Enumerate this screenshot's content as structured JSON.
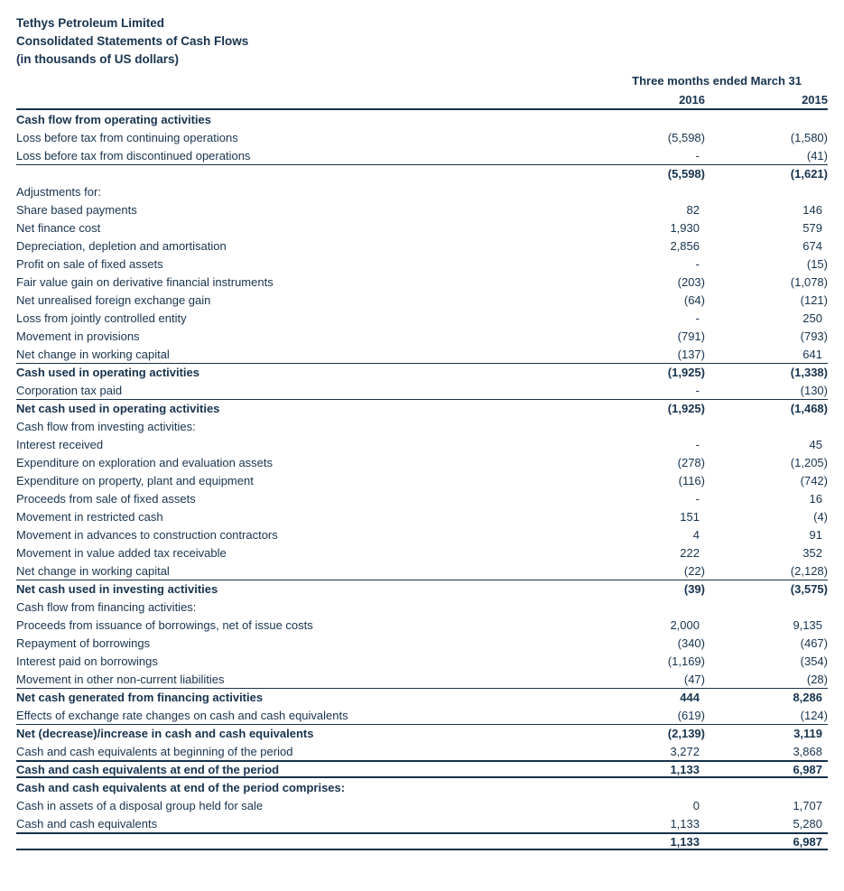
{
  "document": {
    "title": "Tethys Petroleum Limited",
    "subtitle": "Consolidated Statements of Cash Flows",
    "unit_note": "(in thousands of US dollars)"
  },
  "colors": {
    "ink": "#17334e",
    "rule": "#16324c",
    "background": "#ffffff"
  },
  "table": {
    "period_header": "Three months ended March 31",
    "columns": [
      "2016",
      "2015"
    ],
    "rows": [
      {
        "label": "Cash flow from operating activities",
        "type": "section"
      },
      {
        "label": "Loss before tax from continuing operations",
        "v2016": "(5,598)",
        "v2015": "(1,580)",
        "type": "item"
      },
      {
        "label": "Loss before tax from discontinued operations",
        "v2016": "-",
        "v2015": "(41)",
        "type": "item"
      },
      {
        "label": "",
        "v2016": "(5,598)",
        "v2015": "(1,621)",
        "type": "total"
      },
      {
        "label": "Adjustments for:",
        "type": "plain"
      },
      {
        "label": "Share based payments",
        "v2016": "82",
        "v2015": "146",
        "type": "item"
      },
      {
        "label": "Net finance cost",
        "v2016": "1,930",
        "v2015": "579",
        "type": "item"
      },
      {
        "label": "Depreciation, depletion and amortisation",
        "v2016": "2,856",
        "v2015": "674",
        "type": "item"
      },
      {
        "label": "Profit on sale of fixed assets",
        "v2016": "-",
        "v2015": "(15)",
        "type": "item"
      },
      {
        "label": "Fair value gain on derivative financial instruments",
        "v2016": "(203)",
        "v2015": "(1,078)",
        "type": "item"
      },
      {
        "label": "Net unrealised foreign exchange gain",
        "v2016": "(64)",
        "v2015": "(121)",
        "type": "item"
      },
      {
        "label": "Loss from jointly controlled entity",
        "v2016": "-",
        "v2015": "250",
        "type": "item"
      },
      {
        "label": "Movement in provisions",
        "v2016": "(791)",
        "v2015": "(793)",
        "type": "item"
      },
      {
        "label": "Net change in working capital",
        "v2016": "(137)",
        "v2015": "641",
        "type": "item"
      },
      {
        "label": "Cash used in operating activities",
        "v2016": "(1,925)",
        "v2015": "(1,338)",
        "type": "total"
      },
      {
        "label": "Corporation tax paid",
        "v2016": "-",
        "v2015": "(130)",
        "type": "item"
      },
      {
        "label": "Net cash used in operating activities",
        "v2016": "(1,925)",
        "v2015": "(1,468)",
        "type": "total"
      },
      {
        "label": "Cash flow from investing activities:",
        "type": "plain"
      },
      {
        "label": "Interest received",
        "v2016": "-",
        "v2015": "45",
        "type": "item"
      },
      {
        "label": "Expenditure on exploration and evaluation assets",
        "v2016": "(278)",
        "v2015": "(1,205)",
        "type": "item"
      },
      {
        "label": "Expenditure on property, plant and equipment",
        "v2016": "(116)",
        "v2015": "(742)",
        "type": "item"
      },
      {
        "label": "Proceeds from sale of fixed assets",
        "v2016": "-",
        "v2015": "16",
        "type": "item"
      },
      {
        "label": "Movement in restricted cash",
        "v2016": "151",
        "v2015": "(4)",
        "type": "item"
      },
      {
        "label": "Movement in advances to construction contractors",
        "v2016": "4",
        "v2015": "91",
        "type": "item"
      },
      {
        "label": "Movement in value added tax receivable",
        "v2016": "222",
        "v2015": "352",
        "type": "item"
      },
      {
        "label": "Net change in working capital",
        "v2016": "(22)",
        "v2015": "(2,128)",
        "type": "item"
      },
      {
        "label": "Net cash used in investing activities",
        "v2016": "(39)",
        "v2015": "(3,575)",
        "type": "total"
      },
      {
        "label": "Cash flow from financing activities:",
        "type": "plain"
      },
      {
        "label": "Proceeds from issuance of borrowings, net of issue costs",
        "v2016": "2,000",
        "v2015": "9,135",
        "type": "item"
      },
      {
        "label": "Repayment of borrowings",
        "v2016": "(340)",
        "v2015": "(467)",
        "type": "item"
      },
      {
        "label": "Interest paid on borrowings",
        "v2016": "(1,169)",
        "v2015": "(354)",
        "type": "item"
      },
      {
        "label": "Movement in other non-current liabilities",
        "v2016": "(47)",
        "v2015": "(28)",
        "type": "item"
      },
      {
        "label": "Net cash generated from financing activities",
        "v2016": "444",
        "v2015": "8,286",
        "type": "total"
      },
      {
        "label": "Effects of exchange rate changes on cash and cash equivalents",
        "v2016": "(619)",
        "v2015": "(124)",
        "type": "item"
      },
      {
        "label": "Net (decrease)/increase in cash and cash equivalents",
        "v2016": "(2,139)",
        "v2015": "3,119",
        "type": "total"
      },
      {
        "label": "Cash and cash equivalents at beginning of the period",
        "v2016": "3,272",
        "v2015": "3,868",
        "type": "item"
      },
      {
        "label": "Cash and cash equivalents at end of the period",
        "v2016": "1,133",
        "v2015": "6,987",
        "type": "grand"
      },
      {
        "label": "Cash and cash equivalents at end of the period comprises:",
        "type": "section"
      },
      {
        "label": "Cash in assets of a disposal group held for sale",
        "v2016": "0",
        "v2015": "1,707",
        "type": "item"
      },
      {
        "label": "Cash and cash equivalents",
        "v2016": "1,133",
        "v2015": "5,280",
        "type": "item"
      },
      {
        "label": "",
        "v2016": "1,133",
        "v2015": "6,987",
        "type": "grand"
      }
    ]
  }
}
